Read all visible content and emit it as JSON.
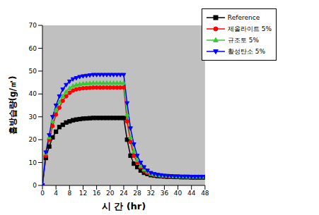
{
  "chart_data": {
    "type": "line",
    "x_label": "시 간 (hr)",
    "y_label": "흡방습량(g/㎡)",
    "x": [
      0,
      1,
      2,
      3,
      4,
      5,
      6,
      7,
      8,
      9,
      10,
      11,
      12,
      13,
      14,
      15,
      16,
      17,
      18,
      19,
      20,
      21,
      22,
      23,
      24,
      25,
      26,
      27,
      28,
      29,
      30,
      31,
      32,
      33,
      34,
      35,
      36,
      37,
      38,
      39,
      40,
      41,
      42,
      43,
      44,
      45,
      46,
      47,
      48
    ],
    "xlim": [
      0,
      48
    ],
    "xticks": [
      0,
      4,
      8,
      12,
      16,
      20,
      24,
      28,
      32,
      36,
      40,
      44,
      48
    ],
    "ylim": [
      0,
      70
    ],
    "yticks": [
      0,
      10,
      20,
      30,
      40,
      50,
      60,
      70
    ],
    "grid": false,
    "legend": "top-right",
    "series": [
      {
        "name": "Reference",
        "color": "#000000",
        "marker": "square",
        "values": [
          0,
          12,
          17,
          21,
          23.5,
          25.5,
          26.5,
          27.5,
          28,
          28.5,
          28.8,
          29,
          29.2,
          29.3,
          29.4,
          29.5,
          29.5,
          29.5,
          29.5,
          29.5,
          29.5,
          29.5,
          29.5,
          29.5,
          29.5,
          20,
          13,
          9.5,
          8,
          6.5,
          5.5,
          5,
          4.5,
          4.3,
          4.1,
          4,
          3.9,
          3.8,
          3.8,
          3.7,
          3.7,
          3.6,
          3.6,
          3.6,
          3.5,
          3.5,
          3.5,
          3.5,
          3.5
        ]
      },
      {
        "name": "제올라이트 5%",
        "color": "#ff0000",
        "marker": "circle",
        "values": [
          0,
          13,
          20,
          26,
          31,
          34,
          37,
          39,
          40.5,
          41.5,
          42,
          42.3,
          42.5,
          42.6,
          42.7,
          42.8,
          42.8,
          42.8,
          42.8,
          42.8,
          42.8,
          42.8,
          42.8,
          42.8,
          42.8,
          28,
          19,
          13,
          10,
          8,
          6.5,
          5.5,
          5,
          4.6,
          4.4,
          4.2,
          4.1,
          4,
          3.9,
          3.9,
          3.8,
          3.8,
          3.8,
          3.7,
          3.7,
          3.7,
          3.7,
          3.7,
          3.7
        ]
      },
      {
        "name": "규조토 5%",
        "color": "#33cc33",
        "marker": "triangle",
        "values": [
          0,
          14,
          21,
          28,
          33,
          36.5,
          39,
          41,
          42.5,
          43.5,
          44,
          44.3,
          44.5,
          44.6,
          44.7,
          44.8,
          44.8,
          44.8,
          44.8,
          44.8,
          44.8,
          44.8,
          44.8,
          44.8,
          44.8,
          31,
          21,
          15,
          11,
          8.5,
          7,
          6,
          5,
          4.7,
          4.5,
          4.3,
          4.2,
          4.1,
          4,
          4,
          3.9,
          3.9,
          3.9,
          3.8,
          3.8,
          3.8,
          3.8,
          3.8,
          3.8
        ]
      },
      {
        "name": "활성탄소 5%",
        "color": "#0000ff",
        "marker": "triangle-down",
        "values": [
          0,
          14.5,
          22,
          30,
          35,
          39,
          42,
          44,
          45.5,
          46.5,
          47,
          47.5,
          47.8,
          48,
          48.2,
          48.4,
          48.4,
          48.4,
          48.4,
          48.4,
          48.4,
          48.4,
          48.4,
          48.4,
          48.4,
          36,
          25,
          18,
          13,
          10,
          8,
          6.5,
          5.5,
          5,
          4.7,
          4.5,
          4.3,
          4.2,
          4.1,
          4,
          4,
          3.9,
          3.9,
          3.9,
          3.8,
          3.8,
          3.8,
          3.8,
          3.8
        ]
      }
    ]
  }
}
